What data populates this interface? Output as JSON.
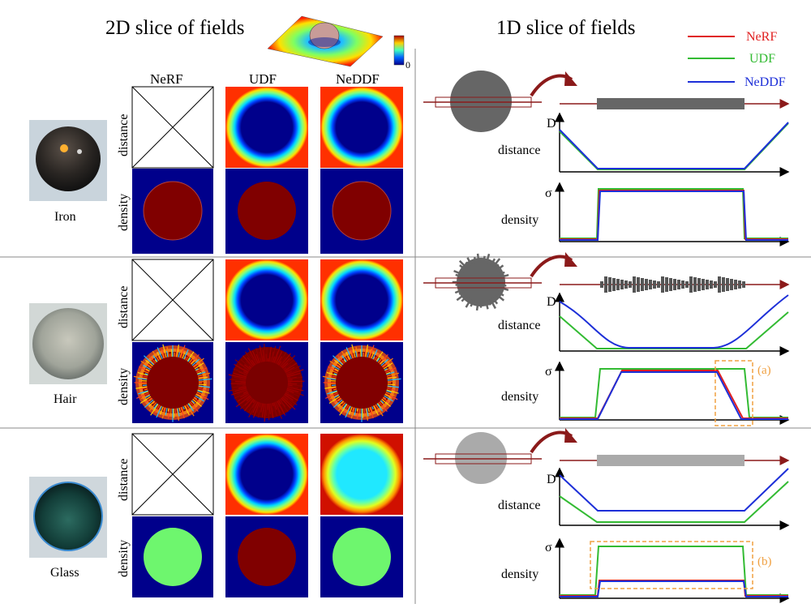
{
  "header": {
    "left_title": "2D slice of fields",
    "right_title": "1D slice of fields",
    "colorbar_zero": "0"
  },
  "methods": [
    "NeRF",
    "UDF",
    "NeDDF"
  ],
  "row_labels": [
    "distance",
    "density"
  ],
  "legend": [
    {
      "name": "NeRF",
      "color": "#e02020"
    },
    {
      "name": "UDF",
      "color": "#33bb33"
    },
    {
      "name": "NeDDF",
      "color": "#1d2fd8"
    }
  ],
  "materials": [
    "Iron",
    "Hair",
    "Glass"
  ],
  "plot_labels": {
    "distance": "distance",
    "density": "density",
    "d_axis": "D",
    "sigma_axis": "σ"
  },
  "annotations": [
    "(a)",
    "(b)"
  ],
  "colors": {
    "deep_blue": "#00008b",
    "dark_red": "#800000",
    "light_green": "#6ef66e",
    "arrow": "#8b1a1a",
    "highlight": "#f0a040"
  }
}
